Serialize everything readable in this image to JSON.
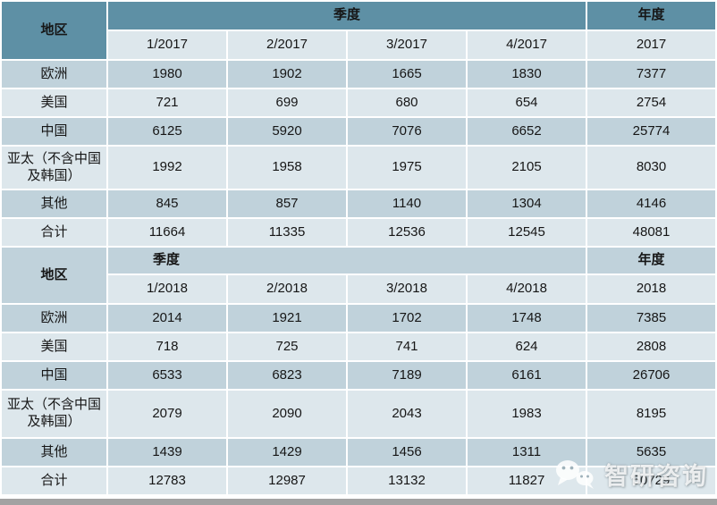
{
  "chart_data": [
    {
      "type": "table",
      "region_header": "地区",
      "quarter_group_header": "季度",
      "year_group_header": "年度",
      "quarter_columns": [
        "1/2017",
        "2/2017",
        "3/2017",
        "4/2017"
      ],
      "year_column": "2017",
      "rows": [
        {
          "region": "欧洲",
          "values": [
            1980,
            1902,
            1665,
            1830,
            7377
          ]
        },
        {
          "region": "美国",
          "values": [
            721,
            699,
            680,
            654,
            2754
          ]
        },
        {
          "region": "中国",
          "values": [
            6125,
            5920,
            7076,
            6652,
            25774
          ]
        },
        {
          "region": "亚太（不含中国及韩国）",
          "values": [
            1992,
            1958,
            1975,
            2105,
            8030
          ]
        },
        {
          "region": "其他",
          "values": [
            845,
            857,
            1140,
            1304,
            4146
          ]
        },
        {
          "region": "合计",
          "values": [
            11664,
            11335,
            12536,
            12545,
            48081
          ]
        }
      ]
    },
    {
      "type": "table",
      "region_header": "地区",
      "quarter_group_header": "季度",
      "year_group_header": "年度",
      "quarter_columns": [
        "1/2018",
        "2/2018",
        "3/2018",
        "4/2018"
      ],
      "year_column": "2018",
      "rows": [
        {
          "region": "欧洲",
          "values": [
            2014,
            1921,
            1702,
            1748,
            7385
          ]
        },
        {
          "region": "美国",
          "values": [
            718,
            725,
            741,
            624,
            2808
          ]
        },
        {
          "region": "中国",
          "values": [
            6533,
            6823,
            7189,
            6161,
            26706
          ]
        },
        {
          "region": "亚太（不含中国及韩国）",
          "values": [
            2079,
            2090,
            2043,
            1983,
            8195
          ]
        },
        {
          "region": "其他",
          "values": [
            1439,
            1429,
            1456,
            1311,
            5635
          ]
        },
        {
          "region": "合计",
          "values": [
            12783,
            12987,
            13132,
            11827,
            50729
          ]
        }
      ]
    }
  ],
  "watermark": {
    "text": "智研咨询",
    "icon": "wechat-chat-bubbles-icon"
  },
  "colors": {
    "header_dark": "#5E90A5",
    "row_medium": "#C0D2DB",
    "row_light": "#DDE7EC",
    "bottom_strip": "#A2A2A2",
    "text": "#161616",
    "watermark": "rgba(255,255,255,0.82)"
  }
}
